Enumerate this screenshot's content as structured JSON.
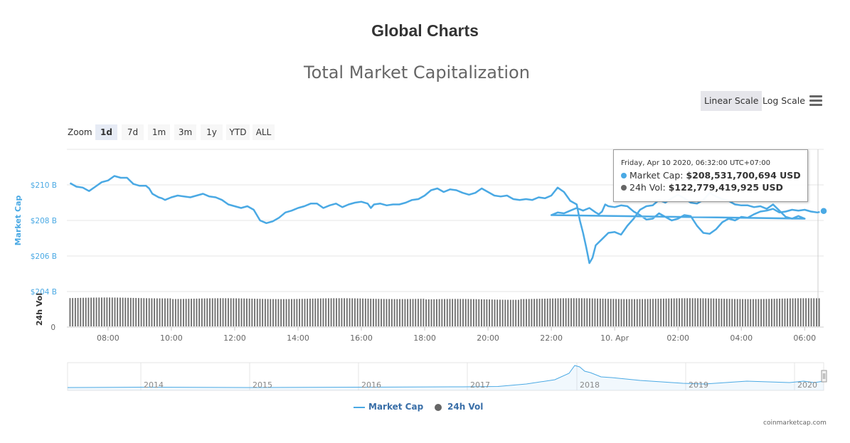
{
  "page_title": "Global Charts",
  "chart_title": "Total Market Capitalization",
  "scale_buttons": [
    {
      "label": "Linear Scale",
      "active": true
    },
    {
      "label": "Log Scale",
      "active": false
    }
  ],
  "zoom": {
    "label": "Zoom",
    "options": [
      {
        "label": "1d",
        "active": true
      },
      {
        "label": "7d",
        "active": false
      },
      {
        "label": "1m",
        "active": false
      },
      {
        "label": "3m",
        "active": false
      },
      {
        "label": "1y",
        "active": false
      },
      {
        "label": "YTD",
        "active": false
      },
      {
        "label": "ALL",
        "active": false
      }
    ]
  },
  "tooltip": {
    "date": "Friday, Apr 10 2020, 06:32:00 UTC+07:00",
    "market_cap_label": "Market Cap:",
    "market_cap_value": "$208,531,700,694 USD",
    "volume_label": "24h Vol:",
    "volume_value": "$122,779,419,925 USD"
  },
  "legend": {
    "market_cap": "Market Cap",
    "volume": "24h Vol"
  },
  "credit": "coinmarketcap.com",
  "colors": {
    "market_cap": "#4aa9e4",
    "volume": "#6b6b6b",
    "axis_label": "#4aa9e4"
  },
  "chart_data": {
    "type": "line",
    "x_unit": "hours since 07:00, Apr 9 2020 (UTC+07:00)",
    "x_ticks": [
      "08:00",
      "10:00",
      "12:00",
      "14:00",
      "16:00",
      "18:00",
      "20:00",
      "22:00",
      "10. Apr",
      "02:00",
      "04:00",
      "06:00"
    ],
    "x_range": [
      -0.3,
      23.6
    ],
    "market_cap": {
      "name": "Market Cap",
      "ylabel": "Market Cap",
      "y_ticks": [
        "$204 B",
        "$206 B",
        "$208 B",
        "$210 B"
      ],
      "ylim": [
        204,
        212
      ],
      "points": [
        [
          -0.2,
          210.1
        ],
        [
          0.0,
          209.9
        ],
        [
          0.2,
          209.85
        ],
        [
          0.4,
          209.65
        ],
        [
          0.6,
          209.9
        ],
        [
          0.8,
          210.15
        ],
        [
          1.0,
          210.25
        ],
        [
          1.2,
          210.5
        ],
        [
          1.4,
          210.4
        ],
        [
          1.6,
          210.4
        ],
        [
          1.8,
          210.05
        ],
        [
          2.0,
          209.95
        ],
        [
          2.2,
          209.95
        ],
        [
          2.3,
          209.8
        ],
        [
          2.4,
          209.5
        ],
        [
          2.6,
          209.3
        ],
        [
          2.7,
          209.25
        ],
        [
          2.8,
          209.15
        ],
        [
          3.0,
          209.3
        ],
        [
          3.2,
          209.4
        ],
        [
          3.6,
          209.3
        ],
        [
          3.8,
          209.4
        ],
        [
          4.0,
          209.5
        ],
        [
          4.2,
          209.35
        ],
        [
          4.4,
          209.3
        ],
        [
          4.6,
          209.15
        ],
        [
          4.8,
          208.9
        ],
        [
          5.0,
          208.8
        ],
        [
          5.2,
          208.7
        ],
        [
          5.4,
          208.8
        ],
        [
          5.6,
          208.6
        ],
        [
          5.8,
          208.0
        ],
        [
          6.0,
          207.85
        ],
        [
          6.2,
          207.95
        ],
        [
          6.4,
          208.15
        ],
        [
          6.6,
          208.45
        ],
        [
          6.8,
          208.55
        ],
        [
          7.0,
          208.7
        ],
        [
          7.2,
          208.8
        ],
        [
          7.4,
          208.95
        ],
        [
          7.6,
          208.95
        ],
        [
          7.8,
          208.7
        ],
        [
          8.0,
          208.85
        ],
        [
          8.2,
          208.95
        ],
        [
          8.4,
          208.75
        ],
        [
          8.6,
          208.9
        ],
        [
          8.8,
          209.0
        ],
        [
          9.0,
          209.05
        ],
        [
          9.2,
          208.95
        ],
        [
          9.3,
          208.7
        ],
        [
          9.4,
          208.9
        ],
        [
          9.6,
          208.95
        ],
        [
          9.8,
          208.85
        ],
        [
          10.0,
          208.9
        ],
        [
          10.2,
          208.9
        ],
        [
          10.4,
          209.0
        ],
        [
          10.6,
          209.15
        ],
        [
          10.8,
          209.2
        ],
        [
          11.0,
          209.4
        ],
        [
          11.2,
          209.7
        ],
        [
          11.4,
          209.8
        ],
        [
          11.6,
          209.6
        ],
        [
          11.8,
          209.75
        ],
        [
          12.0,
          209.7
        ],
        [
          12.2,
          209.55
        ],
        [
          12.4,
          209.45
        ],
        [
          12.6,
          209.55
        ],
        [
          12.8,
          209.8
        ],
        [
          13.0,
          209.6
        ],
        [
          13.2,
          209.4
        ],
        [
          13.4,
          209.35
        ],
        [
          13.6,
          209.4
        ],
        [
          13.8,
          209.2
        ],
        [
          14.0,
          209.15
        ],
        [
          14.2,
          209.2
        ],
        [
          14.4,
          209.15
        ],
        [
          14.6,
          209.3
        ],
        [
          14.8,
          209.25
        ],
        [
          15.0,
          209.4
        ],
        [
          15.2,
          209.85
        ],
        [
          15.4,
          209.6
        ],
        [
          15.6,
          209.1
        ],
        [
          15.8,
          208.9
        ],
        [
          15.9,
          208.0
        ],
        [
          16.0,
          207.3
        ],
        [
          16.1,
          206.5
        ],
        [
          16.2,
          205.6
        ],
        [
          16.3,
          205.9
        ],
        [
          16.4,
          206.6
        ],
        [
          16.6,
          206.95
        ],
        [
          16.8,
          207.3
        ],
        [
          17.0,
          207.35
        ],
        [
          17.2,
          207.2
        ],
        [
          17.4,
          207.7
        ],
        [
          17.6,
          208.1
        ],
        [
          17.8,
          208.6
        ],
        [
          18.0,
          208.8
        ],
        [
          18.2,
          208.85
        ],
        [
          18.4,
          209.15
        ],
        [
          18.6,
          209.0
        ],
        [
          18.8,
          209.25
        ],
        [
          19.0,
          209.45
        ],
        [
          19.2,
          209.25
        ],
        [
          19.4,
          209.0
        ],
        [
          19.6,
          208.95
        ],
        [
          19.8,
          209.15
        ],
        [
          20.0,
          209.55
        ],
        [
          20.2,
          209.35
        ],
        [
          20.4,
          209.2
        ],
        [
          20.6,
          209.1
        ],
        [
          20.8,
          208.9
        ],
        [
          21.0,
          208.85
        ],
        [
          21.2,
          208.85
        ],
        [
          21.4,
          208.75
        ],
        [
          21.6,
          208.8
        ],
        [
          21.8,
          208.65
        ],
        [
          22.0,
          208.9
        ],
        [
          22.2,
          208.55
        ],
        [
          22.4,
          208.2
        ],
        [
          22.6,
          208.1
        ],
        [
          22.8,
          208.25
        ],
        [
          23.0,
          208.1
        ]
      ],
      "points_after_midnight": [
        [
          0.0,
          208.3
        ],
        [
          0.2,
          208.45
        ],
        [
          0.4,
          208.4
        ],
        [
          0.6,
          208.55
        ],
        [
          0.8,
          208.7
        ],
        [
          1.0,
          208.55
        ],
        [
          1.2,
          208.7
        ],
        [
          1.4,
          208.45
        ],
        [
          1.5,
          208.35
        ],
        [
          1.6,
          208.5
        ],
        [
          1.7,
          208.9
        ],
        [
          1.8,
          208.8
        ],
        [
          2.0,
          208.75
        ],
        [
          2.2,
          208.85
        ],
        [
          2.4,
          208.8
        ],
        [
          2.6,
          208.5
        ],
        [
          2.8,
          208.3
        ],
        [
          3.0,
          208.05
        ],
        [
          3.2,
          208.1
        ],
        [
          3.4,
          208.4
        ],
        [
          3.6,
          208.2
        ],
        [
          3.8,
          208.0
        ],
        [
          4.0,
          208.1
        ],
        [
          4.2,
          208.3
        ],
        [
          4.4,
          208.25
        ],
        [
          4.6,
          207.7
        ],
        [
          4.8,
          207.3
        ],
        [
          5.0,
          207.25
        ],
        [
          5.2,
          207.5
        ],
        [
          5.4,
          207.9
        ],
        [
          5.6,
          208.1
        ],
        [
          5.8,
          208.0
        ],
        [
          6.0,
          208.2
        ],
        [
          6.2,
          208.15
        ],
        [
          6.4,
          208.35
        ],
        [
          6.6,
          208.5
        ],
        [
          6.8,
          208.55
        ],
        [
          7.0,
          208.65
        ],
        [
          7.2,
          208.45
        ],
        [
          7.4,
          208.5
        ],
        [
          7.6,
          208.6
        ],
        [
          7.8,
          208.55
        ],
        [
          8.0,
          208.6
        ],
        [
          8.2,
          208.5
        ],
        [
          8.4,
          208.45
        ],
        [
          8.6,
          208.53
        ]
      ]
    },
    "volume": {
      "name": "24h Vol",
      "ylabel": "24h Vol",
      "y_ticks": [
        "0"
      ],
      "approx_value_usd_bn": 123
    },
    "navigator": {
      "labels": [
        "2014",
        "2015",
        "2016",
        "2017",
        "2018",
        "2019",
        "2020"
      ]
    }
  }
}
